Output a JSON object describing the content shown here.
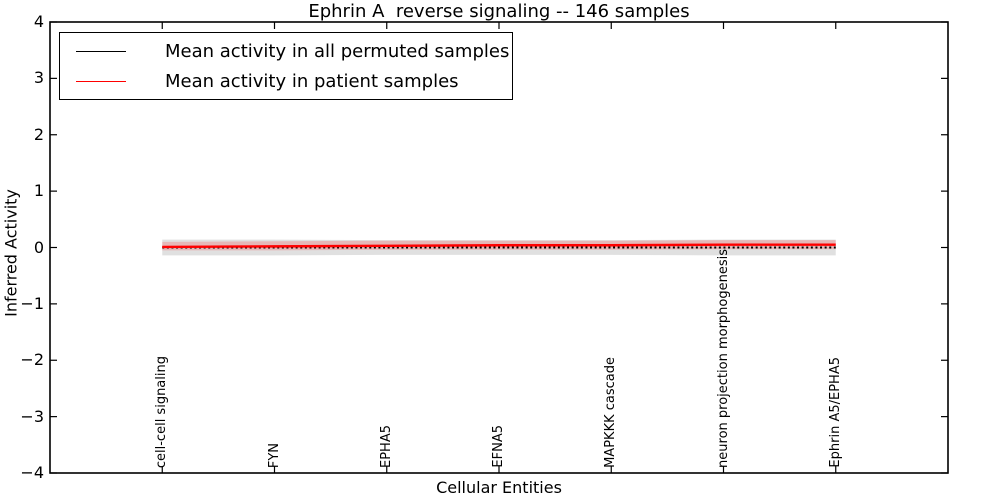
{
  "chart_data": {
    "type": "line",
    "title": "Ephrin A  reverse signaling -- 146 samples",
    "xlabel": "Cellular Entities",
    "ylabel": "Inferred Activity",
    "xlim": [
      -1,
      7
    ],
    "ylim": [
      -4,
      4
    ],
    "yticks": [
      4,
      3,
      2,
      1,
      0,
      -1,
      -2,
      -3,
      -4
    ],
    "grid": false,
    "legend_position": "upper left",
    "frame_color": "#000000",
    "background_color": "#ffffff",
    "categories": [
      "cell-cell signaling",
      "FYN",
      "EPHA5",
      "EFNA5",
      "MAPKKK cascade",
      "neuron projection morphogenesis",
      "Ephrin A5/EPHA5"
    ],
    "series": [
      {
        "name": "Mean activity in all permuted samples",
        "color": "#000000",
        "linestyle": "dotted",
        "values": [
          0.0,
          0.0,
          0.0,
          0.0,
          0.0,
          0.0,
          0.0
        ],
        "band_upper": [
          0.14,
          0.14,
          0.13,
          0.13,
          0.13,
          0.14,
          0.14
        ],
        "band_lower": [
          -0.14,
          -0.14,
          -0.13,
          -0.13,
          -0.13,
          -0.14,
          -0.14
        ],
        "band_color": "#999999",
        "band_opacity": 0.3
      },
      {
        "name": "Mean activity in patient samples",
        "color": "#ff0000",
        "linestyle": "solid",
        "values": [
          0.01,
          0.02,
          0.03,
          0.04,
          0.04,
          0.05,
          0.05
        ],
        "band_upper": [
          0.1,
          0.11,
          0.12,
          0.12,
          0.12,
          0.13,
          0.13
        ],
        "band_lower": [
          -0.05,
          -0.05,
          -0.04,
          -0.04,
          -0.04,
          -0.03,
          -0.03
        ],
        "band_color": "#ff0000",
        "band_opacity": 0.18
      }
    ]
  }
}
